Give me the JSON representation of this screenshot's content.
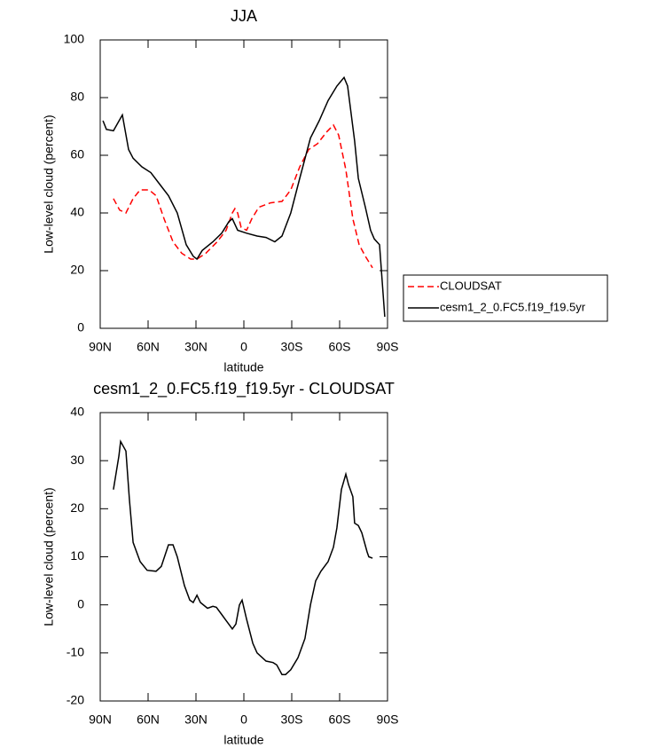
{
  "chart_data": [
    {
      "type": "line",
      "title": "JJA",
      "xlabel": "latitude",
      "ylabel": "Low-level cloud (percent)",
      "xlim": [
        90,
        -90
      ],
      "xticks": [
        {
          "value": 90,
          "label": "90N"
        },
        {
          "value": 60,
          "label": "60N"
        },
        {
          "value": 30,
          "label": "30N"
        },
        0,
        {
          "value": -30,
          "label": "30S"
        },
        {
          "value": -60,
          "label": "60S"
        },
        {
          "value": -90,
          "label": "90S"
        }
      ],
      "ylim": [
        0,
        100
      ],
      "yticks": [
        0,
        20,
        40,
        60,
        80,
        100
      ],
      "legend": "right",
      "series": [
        {
          "name": "CLOUDSAT",
          "color": "#ff0000",
          "dashed": true,
          "x": [
            81.7,
            77.8,
            73.9,
            69.4,
            65,
            59.4,
            55,
            50,
            44.4,
            38.9,
            33.3,
            29.4,
            23.9,
            16.7,
            11.1,
            7.2,
            5.6,
            3.9,
            1.7,
            -1.7,
            -5,
            -9.4,
            -16.7,
            -23.9,
            -29.4,
            -35,
            -40.6,
            -46.1,
            -51.7,
            -56.1,
            -59.4,
            -63.9,
            -68.3,
            -72.2,
            -76.1,
            -80.6
          ],
          "values": [
            45,
            41,
            40,
            45,
            48,
            48,
            46,
            38,
            30,
            26,
            24,
            24,
            26,
            30,
            34,
            40,
            41.5,
            40,
            35,
            34,
            38,
            42,
            43.5,
            44,
            48,
            56,
            62,
            64,
            68,
            70.5,
            67,
            55,
            38,
            29,
            25,
            21
          ]
        },
        {
          "name": "cesm1_2_0.FC5.f19_f19.5yr",
          "color": "#000000",
          "dashed": false,
          "x": [
            88.3,
            86.1,
            81.7,
            76.1,
            72.2,
            69.4,
            63.9,
            58.3,
            52.8,
            47.2,
            41.7,
            36.1,
            31.7,
            29.4,
            26.1,
            19.4,
            13.9,
            9.4,
            7.2,
            3.9,
            -1.7,
            -8.3,
            -13.9,
            -19.4,
            -23.9,
            -29.4,
            -35,
            -41.7,
            -47.2,
            -52.8,
            -58.3,
            -62.8,
            -65,
            -69.4,
            -71.7,
            -76.1,
            -79.4,
            -81.7,
            -85,
            -88.3
          ],
          "values": [
            72,
            69,
            68.5,
            74,
            62,
            59,
            56,
            54,
            50,
            46,
            40,
            29,
            25,
            24,
            27,
            30,
            33,
            37,
            38,
            34,
            33,
            32,
            31.5,
            30,
            32,
            40,
            52,
            66,
            72,
            79,
            84,
            87,
            84,
            65,
            52,
            42,
            34,
            31,
            29,
            4
          ]
        }
      ]
    },
    {
      "type": "line",
      "title": "cesm1_2_0.FC5.f19_f19.5yr - CLOUDSAT",
      "xlabel": "latitude",
      "ylabel": "Low-level cloud (percent)",
      "xlim": [
        90,
        -90
      ],
      "xticks": [
        {
          "value": 90,
          "label": "90N"
        },
        {
          "value": 60,
          "label": "60N"
        },
        {
          "value": 30,
          "label": "30N"
        },
        0,
        {
          "value": -30,
          "label": "30S"
        },
        {
          "value": -60,
          "label": "60S"
        },
        {
          "value": -90,
          "label": "90S"
        }
      ],
      "ylim": [
        -20,
        40
      ],
      "yticks": [
        -20,
        -10,
        0,
        10,
        20,
        30,
        40
      ],
      "color": "#000000",
      "x": [
        81.7,
        78.3,
        77.2,
        73.9,
        71.7,
        69.4,
        65,
        60.6,
        55,
        51.7,
        47.2,
        44.4,
        41.7,
        37.2,
        33.9,
        31.7,
        29.4,
        27.2,
        22.8,
        19.4,
        17.2,
        13.9,
        10.6,
        7.2,
        5,
        2.8,
        1.1,
        -1.7,
        -5.6,
        -8.3,
        -13.9,
        -18.3,
        -20.6,
        -23.9,
        -26.1,
        -29.4,
        -33.9,
        -38.3,
        -41.7,
        -45,
        -48.3,
        -52.8,
        -56.1,
        -58.3,
        -61.1,
        -63.9,
        -65.6,
        -68.3,
        -69.4,
        -71.7,
        -73.9,
        -77.2,
        -78.3,
        -80.6
      ],
      "values": [
        24,
        31,
        34,
        32,
        22,
        13,
        9,
        7.2,
        7,
        8,
        12.5,
        12.5,
        10,
        4,
        1,
        0.5,
        2,
        0.5,
        -0.7,
        -0.3,
        -0.5,
        -2,
        -3.5,
        -5,
        -4,
        0,
        1,
        -3,
        -8,
        -10,
        -11.7,
        -12,
        -12.5,
        -14.5,
        -14.5,
        -13.5,
        -11,
        -7,
        0,
        5,
        7,
        9,
        12,
        16,
        24,
        27.2,
        25,
        22.5,
        17,
        16.5,
        15,
        11,
        10,
        9.7
      ]
    }
  ]
}
